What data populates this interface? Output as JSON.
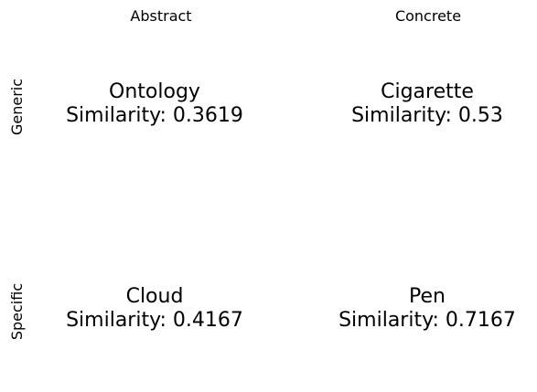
{
  "columns": {
    "abstract": "Abstract",
    "concrete": "Concrete"
  },
  "rows": {
    "generic": "Generic",
    "specific": "Specific"
  },
  "cells": {
    "abstract_generic": {
      "word": "Ontology",
      "similarity": "Similarity: 0.3619"
    },
    "concrete_generic": {
      "word": "Cigarette",
      "similarity": "Similarity: 0.53"
    },
    "abstract_specific": {
      "word": "Cloud",
      "similarity": "Similarity: 0.4167"
    },
    "concrete_specific": {
      "word": "Pen",
      "similarity": "Similarity: 0.7167"
    }
  }
}
